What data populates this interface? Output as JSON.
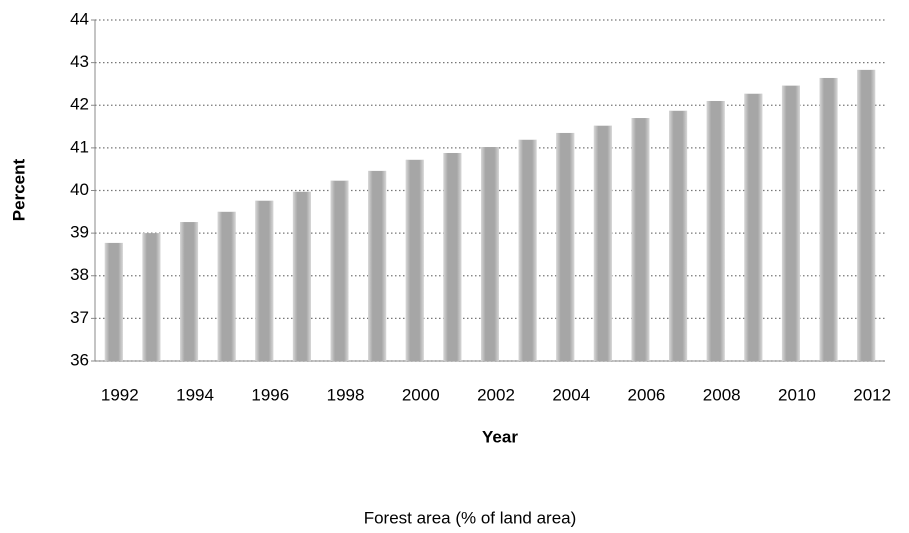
{
  "chart_data": {
    "type": "bar",
    "title": "Forest area (% of land area)",
    "x_label": "Year",
    "y_label": "Percent",
    "categories": [
      "1992",
      null,
      "1994",
      null,
      "1996",
      null,
      "1998",
      null,
      "2000",
      null,
      "2002",
      null,
      "2004",
      null,
      "2006",
      null,
      "2008",
      null,
      "2010",
      null,
      "2012"
    ],
    "values": [
      38.77,
      39.0,
      39.26,
      39.5,
      39.76,
      39.97,
      40.23,
      40.46,
      40.72,
      40.88,
      41.02,
      41.19,
      41.35,
      41.52,
      41.7,
      41.87,
      42.1,
      42.27,
      42.46,
      42.64,
      42.83
    ],
    "color": "#a6a6a6",
    "ylim": [
      36,
      44
    ],
    "yticks": [
      36,
      37,
      38,
      39,
      40,
      41,
      42,
      43,
      44
    ],
    "grid": true
  }
}
